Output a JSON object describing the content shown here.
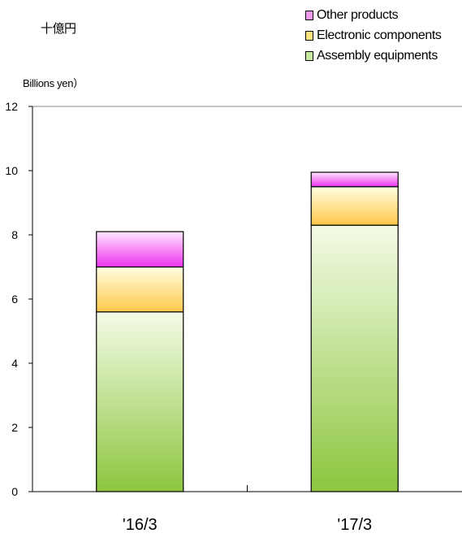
{
  "chart_data": {
    "type": "bar",
    "stacked": true,
    "unit_label_jp": "十億円",
    "ylabel": "Billions yen）",
    "ylim": [
      0,
      12
    ],
    "yticks": [
      "0",
      "2",
      "4",
      "6",
      "8",
      "10",
      "12"
    ],
    "categories": [
      "'16/3",
      "'17/3"
    ],
    "series": [
      {
        "name": "Assembly equipments",
        "values": [
          5.6,
          8.3
        ],
        "color_top": "#f4fbe6",
        "color_bottom": "#8cc63f"
      },
      {
        "name": "Electronic components",
        "values": [
          1.4,
          1.2
        ],
        "color_top": "#fffde0",
        "color_bottom": "#ffc94a"
      },
      {
        "name": "Other products",
        "values": [
          1.1,
          0.45
        ],
        "color_top": "#ffe6ff",
        "color_bottom": "#ee33ee"
      }
    ],
    "legend": {
      "position": "top-right",
      "order": [
        "Other products",
        "Electronic components",
        "Assembly equipments"
      ],
      "swatch_colors": [
        "#f19cf1",
        "#ffe27a",
        "#c8e7a0"
      ]
    },
    "grid": false
  }
}
